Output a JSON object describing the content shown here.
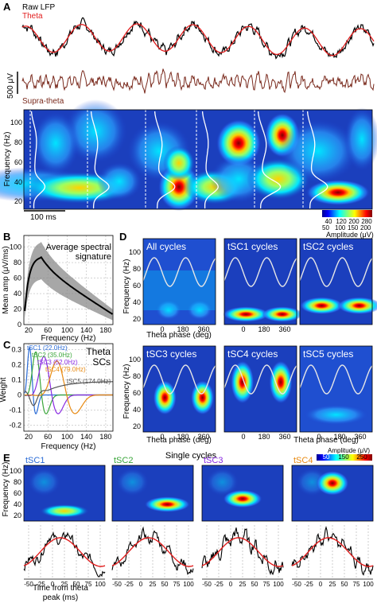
{
  "colors": {
    "raw": "#000000",
    "theta": "#e11d1d",
    "supra": "#7a2a1d",
    "tsc1": "#2b6cd6",
    "tsc2": "#3aa63a",
    "tsc3": "#8a2be2",
    "tsc4": "#e88a12",
    "tsc5": "#555555"
  },
  "panelA": {
    "label": "A",
    "legend_raw": "Raw LFP",
    "legend_theta": "Theta",
    "scale_label": "500 μV",
    "supra_label": "Supra-theta",
    "ylabel": "Frequency (Hz)",
    "yticks": [
      "100",
      "80",
      "60",
      "40",
      "20"
    ],
    "time_scale": "100 ms",
    "colorbar_ticks": [
      "40",
      "120",
      "200",
      "280"
    ],
    "colorbar_ticks2": [
      "50",
      "100",
      "150",
      "200"
    ],
    "colorbar_label": "Amplitude (μV)"
  },
  "panelB": {
    "label": "B",
    "title_line1": "Average spectral",
    "title_line2": "signature",
    "ylabel": "Mean amp (μV/ms)",
    "xlabel": "Frequency (Hz)",
    "xticks": [
      "20",
      "60",
      "100",
      "140",
      "180"
    ],
    "yticks": [
      "100",
      "80",
      "60",
      "40",
      "20",
      "0"
    ]
  },
  "panelC": {
    "label": "C",
    "title_line1": "Theta",
    "title_line2": "SCs",
    "ylabel": "Weight",
    "xlabel": "Frequency (Hz)",
    "xticks": [
      "20",
      "60",
      "100",
      "140",
      "180"
    ],
    "yticks": [
      "0.3",
      "0.2",
      "0.1",
      "0",
      "-0.1",
      "-0.2"
    ],
    "components": [
      {
        "name": "tSC1 (22.0Hz)"
      },
      {
        "name": "tSC2 (35.0Hz)"
      },
      {
        "name": "tSC3 (52.0Hz)"
      },
      {
        "name": "tSC4 (79.0Hz)"
      },
      {
        "name": "tSC5 (174.0Hz)"
      }
    ]
  },
  "panelD": {
    "label": "D",
    "ylabel": "Frequency (Hz)",
    "xlabel": "Theta phase (deg)",
    "xticks": [
      "0",
      "180",
      "360"
    ],
    "yticks": [
      "100",
      "80",
      "60",
      "40",
      "20"
    ],
    "titles": [
      "All cycles",
      "tSC1 cycles",
      "tSC2 cycles",
      "tSC3 cycles",
      "tSC4 cycles",
      "tSC5 cycles"
    ]
  },
  "panelE": {
    "label": "E",
    "title": "Single cycles",
    "ylabel": "Frequency (Hz)",
    "yticks": [
      "100",
      "80",
      "60",
      "40",
      "20"
    ],
    "colorbar_label": "Amplitude (μV)",
    "colorbar_ticks": [
      "50",
      "150",
      "250"
    ],
    "titles": [
      "tSC1",
      "tSC2",
      "tSC3",
      "tSC4"
    ],
    "xticks": [
      "-50",
      "-25",
      "0",
      "25",
      "50",
      "75",
      "100"
    ],
    "xlabel1": "Time from theta",
    "xlabel2": "peak (ms)"
  }
}
